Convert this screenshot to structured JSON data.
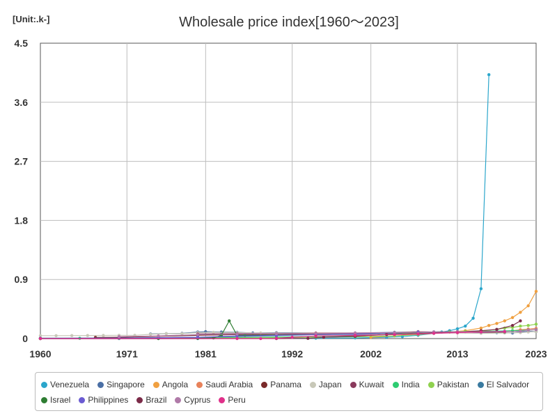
{
  "chart_data": {
    "type": "line",
    "title": "Wholesale price index[1960～2023]",
    "unit": "[Unit:.k-]",
    "xlabel": "",
    "ylabel": "",
    "xlim": [
      1960,
      2023
    ],
    "ylim": [
      0,
      4.5
    ],
    "x_ticks": [
      1960,
      1971,
      1981,
      1992,
      2002,
      2013,
      2023
    ],
    "y_ticks": [
      0,
      0.9,
      1.8,
      2.7,
      3.6,
      4.5
    ],
    "y_tick_labels": [
      "0",
      "0.9",
      "1.8",
      "2.7",
      "3.6",
      "4.5"
    ],
    "grid": true,
    "legend_position": "bottom",
    "series": [
      {
        "name": "Venezuela",
        "color": "#2ba6cb",
        "points": [
          [
            1960,
            0.0001
          ],
          [
            1970,
            0.0002
          ],
          [
            1980,
            0.0003
          ],
          [
            1990,
            0.002
          ],
          [
            1995,
            0.005
          ],
          [
            2000,
            0.01
          ],
          [
            2004,
            0.02
          ],
          [
            2006,
            0.03
          ],
          [
            2008,
            0.05
          ],
          [
            2010,
            0.08
          ],
          [
            2011,
            0.1
          ],
          [
            2012,
            0.12
          ],
          [
            2013,
            0.15
          ],
          [
            2014,
            0.19
          ],
          [
            2015,
            0.31
          ],
          [
            2016,
            0.76
          ],
          [
            2017,
            4.02
          ]
        ]
      },
      {
        "name": "Singapore",
        "color": "#4a6fa5",
        "points": [
          [
            1974,
            0.07
          ],
          [
            1976,
            0.075
          ],
          [
            1978,
            0.08
          ],
          [
            1980,
            0.1
          ],
          [
            1981,
            0.105
          ],
          [
            1983,
            0.1
          ],
          [
            1985,
            0.095
          ],
          [
            1987,
            0.085
          ],
          [
            1990,
            0.09
          ],
          [
            1995,
            0.085
          ],
          [
            2000,
            0.085
          ],
          [
            2005,
            0.095
          ],
          [
            2008,
            0.105
          ],
          [
            2010,
            0.1
          ],
          [
            2012,
            0.105
          ],
          [
            2014,
            0.1
          ],
          [
            2016,
            0.085
          ],
          [
            2018,
            0.09
          ],
          [
            2020,
            0.085
          ],
          [
            2021,
            0.1
          ],
          [
            2022,
            0.11
          ],
          [
            2023,
            0.105
          ]
        ]
      },
      {
        "name": "Angola",
        "color": "#f0a040",
        "points": [
          [
            2002,
            0.02
          ],
          [
            2005,
            0.04
          ],
          [
            2008,
            0.07
          ],
          [
            2010,
            0.09
          ],
          [
            2012,
            0.1
          ],
          [
            2014,
            0.12
          ],
          [
            2016,
            0.16
          ],
          [
            2017,
            0.2
          ],
          [
            2018,
            0.23
          ],
          [
            2019,
            0.27
          ],
          [
            2020,
            0.32
          ],
          [
            2021,
            0.4
          ],
          [
            2022,
            0.5
          ],
          [
            2023,
            0.72
          ]
        ]
      },
      {
        "name": "Saudi Arabia",
        "color": "#e8825a",
        "points": [
          [
            1990,
            0.08
          ],
          [
            1995,
            0.085
          ],
          [
            2000,
            0.085
          ],
          [
            2005,
            0.09
          ],
          [
            2008,
            0.105
          ],
          [
            2010,
            0.1
          ],
          [
            2013,
            0.105
          ],
          [
            2016,
            0.1
          ],
          [
            2018,
            0.11
          ],
          [
            2020,
            0.12
          ],
          [
            2021,
            0.135
          ],
          [
            2022,
            0.145
          ],
          [
            2023,
            0.155
          ]
        ]
      },
      {
        "name": "Panama",
        "color": "#7a2a2a",
        "points": [
          [
            1967,
            0.018
          ],
          [
            1970,
            0.02
          ],
          [
            1975,
            0.035
          ],
          [
            1980,
            0.05
          ],
          [
            1985,
            0.06
          ],
          [
            1990,
            0.06
          ],
          [
            1995,
            0.065
          ],
          [
            2000,
            0.07
          ],
          [
            2005,
            0.08
          ],
          [
            2008,
            0.1
          ],
          [
            2010,
            0.1
          ],
          [
            2013,
            0.1
          ],
          [
            2016,
            0.095
          ],
          [
            2019,
            0.1
          ]
        ]
      },
      {
        "name": "Japan",
        "color": "#c8c8b8",
        "points": [
          [
            1960,
            0.045
          ],
          [
            1962,
            0.045
          ],
          [
            1964,
            0.046
          ],
          [
            1966,
            0.047
          ],
          [
            1968,
            0.048
          ],
          [
            1970,
            0.05
          ],
          [
            1972,
            0.05
          ],
          [
            1974,
            0.065
          ],
          [
            1976,
            0.075
          ],
          [
            1978,
            0.075
          ],
          [
            1980,
            0.09
          ],
          [
            1982,
            0.095
          ],
          [
            1985,
            0.09
          ],
          [
            1988,
            0.085
          ],
          [
            1990,
            0.085
          ],
          [
            1995,
            0.08
          ],
          [
            2000,
            0.08
          ],
          [
            2003,
            0.078
          ],
          [
            2005,
            0.08
          ],
          [
            2008,
            0.09
          ],
          [
            2010,
            0.085
          ],
          [
            2013,
            0.085
          ],
          [
            2016,
            0.08
          ],
          [
            2019,
            0.085
          ],
          [
            2021,
            0.09
          ],
          [
            2022,
            0.1
          ],
          [
            2023,
            0.105
          ]
        ]
      },
      {
        "name": "Kuwait",
        "color": "#8a3a5c",
        "points": [
          [
            1980,
            0.07
          ],
          [
            1985,
            0.075
          ],
          [
            1990,
            0.075
          ],
          [
            1995,
            0.08
          ],
          [
            2000,
            0.08
          ],
          [
            2005,
            0.085
          ],
          [
            2008,
            0.095
          ],
          [
            2010,
            0.1
          ],
          [
            2013,
            0.105
          ],
          [
            2016,
            0.105
          ],
          [
            2019,
            0.11
          ]
        ]
      },
      {
        "name": "India",
        "color": "#2ecc71",
        "points": [
          [
            1960,
            0.003
          ],
          [
            1965,
            0.004
          ],
          [
            1970,
            0.005
          ],
          [
            1975,
            0.008
          ],
          [
            1980,
            0.012
          ],
          [
            1985,
            0.016
          ],
          [
            1990,
            0.022
          ],
          [
            1995,
            0.035
          ],
          [
            2000,
            0.045
          ],
          [
            2005,
            0.06
          ],
          [
            2008,
            0.075
          ],
          [
            2010,
            0.085
          ],
          [
            2013,
            0.1
          ],
          [
            2016,
            0.11
          ],
          [
            2018,
            0.115
          ],
          [
            2020,
            0.12
          ],
          [
            2022,
            0.13
          ],
          [
            2023,
            0.135
          ]
        ]
      },
      {
        "name": "Pakistan",
        "color": "#8fd14f",
        "points": [
          [
            1960,
            0.001
          ],
          [
            1970,
            0.002
          ],
          [
            1975,
            0.004
          ],
          [
            1980,
            0.006
          ],
          [
            1985,
            0.008
          ],
          [
            1990,
            0.012
          ],
          [
            1995,
            0.02
          ],
          [
            2000,
            0.028
          ],
          [
            2005,
            0.04
          ],
          [
            2008,
            0.06
          ],
          [
            2010,
            0.08
          ],
          [
            2012,
            0.1
          ],
          [
            2014,
            0.11
          ],
          [
            2016,
            0.115
          ],
          [
            2018,
            0.14
          ],
          [
            2019,
            0.16
          ],
          [
            2020,
            0.17
          ],
          [
            2021,
            0.19
          ],
          [
            2022,
            0.2
          ],
          [
            2023,
            0.22
          ]
        ]
      },
      {
        "name": "El Salvador",
        "color": "#3a7aa0",
        "points": [
          [
            1960,
            0.006
          ],
          [
            1970,
            0.01
          ],
          [
            1980,
            0.02
          ],
          [
            1990,
            0.045
          ],
          [
            1995,
            0.06
          ],
          [
            2000,
            0.065
          ],
          [
            2005,
            0.08
          ],
          [
            2008,
            0.1
          ],
          [
            2010,
            0.1
          ],
          [
            2013,
            0.105
          ],
          [
            2016,
            0.1
          ],
          [
            2019,
            0.105
          ]
        ]
      },
      {
        "name": "Israel",
        "color": "#2e7d32",
        "points": [
          [
            1960,
            0.0
          ],
          [
            1975,
            0.0
          ],
          [
            1980,
            0.003
          ],
          [
            1982,
            0.01
          ],
          [
            1983,
            0.05
          ],
          [
            1984,
            0.27
          ],
          [
            1985,
            0.05
          ],
          [
            1986,
            0.05
          ],
          [
            1990,
            0.055
          ],
          [
            1995,
            0.06
          ],
          [
            2000,
            0.07
          ],
          [
            2005,
            0.08
          ],
          [
            2010,
            0.1
          ],
          [
            2013,
            0.105
          ],
          [
            2016,
            0.1
          ],
          [
            2019,
            0.1
          ]
        ]
      },
      {
        "name": "Philippines",
        "color": "#6b5bd2",
        "points": [
          [
            1960,
            0.003
          ],
          [
            1970,
            0.006
          ],
          [
            1975,
            0.012
          ],
          [
            1980,
            0.02
          ],
          [
            1985,
            0.04
          ],
          [
            1990,
            0.05
          ],
          [
            1995,
            0.06
          ],
          [
            2000,
            0.07
          ],
          [
            2005,
            0.085
          ],
          [
            2008,
            0.1
          ],
          [
            2010,
            0.1
          ],
          [
            2013,
            0.1
          ],
          [
            2016,
            0.1
          ],
          [
            2019,
            0.11
          ]
        ]
      },
      {
        "name": "Brazil",
        "color": "#7b2a48",
        "points": [
          [
            1960,
            0.0
          ],
          [
            1990,
            0.0
          ],
          [
            1994,
            0.003
          ],
          [
            1996,
            0.02
          ],
          [
            2000,
            0.035
          ],
          [
            2004,
            0.06
          ],
          [
            2008,
            0.075
          ],
          [
            2010,
            0.085
          ],
          [
            2013,
            0.1
          ],
          [
            2016,
            0.12
          ],
          [
            2018,
            0.14
          ],
          [
            2020,
            0.2
          ],
          [
            2021,
            0.27
          ]
        ]
      },
      {
        "name": "Cyprus",
        "color": "#b07aa8",
        "points": [
          [
            1970,
            0.03
          ],
          [
            1975,
            0.04
          ],
          [
            1980,
            0.06
          ],
          [
            1985,
            0.07
          ],
          [
            1990,
            0.075
          ],
          [
            1995,
            0.08
          ],
          [
            2000,
            0.085
          ],
          [
            2005,
            0.09
          ],
          [
            2010,
            0.1
          ],
          [
            2013,
            0.105
          ],
          [
            2016,
            0.1
          ],
          [
            2019,
            0.105
          ],
          [
            2021,
            0.11
          ],
          [
            2022,
            0.13
          ],
          [
            2023,
            0.135
          ]
        ]
      },
      {
        "name": "Peru",
        "color": "#e0308a",
        "points": [
          [
            1960,
            0.0
          ],
          [
            1985,
            0.0
          ],
          [
            1988,
            0.0001
          ],
          [
            1990,
            0.003
          ],
          [
            1992,
            0.02
          ],
          [
            1995,
            0.04
          ],
          [
            2000,
            0.05
          ],
          [
            2005,
            0.06
          ],
          [
            2008,
            0.07
          ],
          [
            2010,
            0.08
          ],
          [
            2013,
            0.09
          ],
          [
            2016,
            0.1
          ],
          [
            2019,
            0.105
          ]
        ]
      }
    ]
  }
}
